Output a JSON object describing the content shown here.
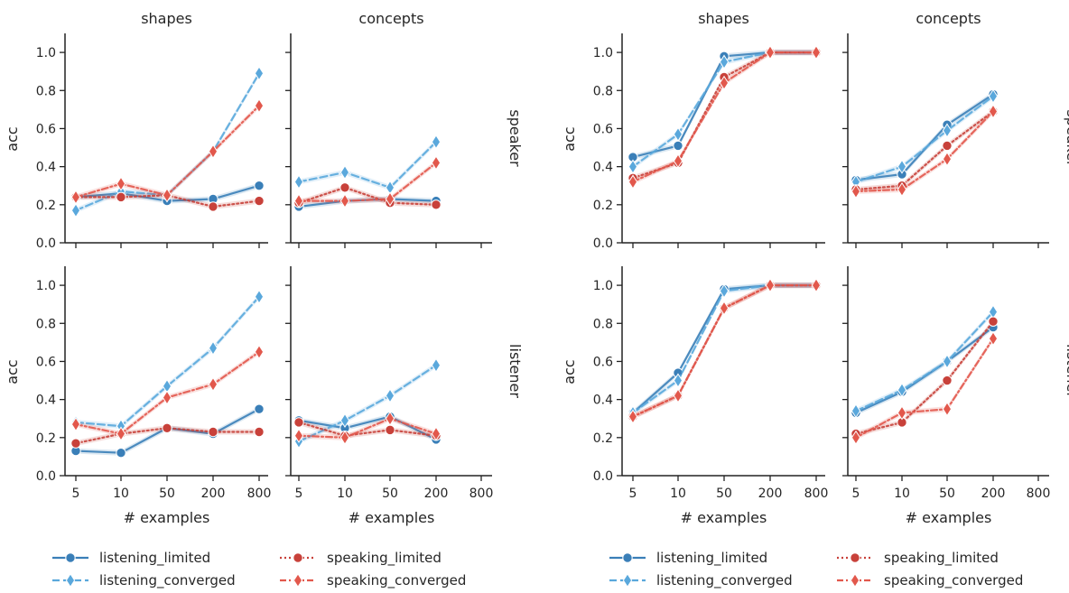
{
  "chart_data": [
    {
      "type": "line",
      "xlabel": "# examples",
      "ylabel": "acc",
      "ylim": [
        0,
        1.1
      ],
      "yticks": [
        0.0,
        0.2,
        0.4,
        0.6,
        0.8,
        1.0
      ],
      "ytick_labels": [
        "0.0",
        "0.2",
        "0.4",
        "0.6",
        "0.8",
        "1.0"
      ],
      "x_categories": [
        "5",
        "10",
        "50",
        "200",
        "800"
      ],
      "col_titles": [
        "shapes",
        "concepts"
      ],
      "row_titles": [
        "speaker",
        "listener"
      ],
      "legend": {
        "placement": "bottom",
        "entries": [
          "listening_limited",
          "listening_converged",
          "speaking_limited",
          "speaking_converged"
        ]
      },
      "panels": [
        {
          "col": "shapes",
          "row": "speaker",
          "series": [
            {
              "name": "listening_limited",
              "x": [
                "5",
                "10",
                "50",
                "200",
                "800"
              ],
              "values": [
                0.24,
                0.26,
                0.22,
                0.23,
                0.3
              ]
            },
            {
              "name": "listening_converged",
              "x": [
                "5",
                "10",
                "50",
                "200",
                "800"
              ],
              "values": [
                0.17,
                0.27,
                0.25,
                0.48,
                0.89
              ]
            },
            {
              "name": "speaking_limited",
              "x": [
                "5",
                "10",
                "50",
                "200",
                "800"
              ],
              "values": [
                0.24,
                0.24,
                0.25,
                0.19,
                0.22
              ]
            },
            {
              "name": "speaking_converged",
              "x": [
                "5",
                "10",
                "50",
                "200",
                "800"
              ],
              "values": [
                0.24,
                0.31,
                0.25,
                0.48,
                0.72
              ]
            }
          ]
        },
        {
          "col": "concepts",
          "row": "speaker",
          "series": [
            {
              "name": "listening_limited",
              "x": [
                "5",
                "10",
                "50",
                "200"
              ],
              "values": [
                0.19,
                0.22,
                0.23,
                0.22
              ]
            },
            {
              "name": "listening_converged",
              "x": [
                "5",
                "10",
                "50",
                "200"
              ],
              "values": [
                0.32,
                0.37,
                0.29,
                0.53
              ]
            },
            {
              "name": "speaking_limited",
              "x": [
                "5",
                "10",
                "50",
                "200"
              ],
              "values": [
                0.21,
                0.29,
                0.21,
                0.2
              ]
            },
            {
              "name": "speaking_converged",
              "x": [
                "5",
                "10",
                "50",
                "200"
              ],
              "values": [
                0.22,
                0.22,
                0.23,
                0.42
              ]
            }
          ]
        },
        {
          "col": "shapes",
          "row": "listener",
          "series": [
            {
              "name": "listening_limited",
              "x": [
                "5",
                "10",
                "50",
                "200",
                "800"
              ],
              "values": [
                0.13,
                0.12,
                0.25,
                0.22,
                0.35
              ]
            },
            {
              "name": "listening_converged",
              "x": [
                "5",
                "10",
                "50",
                "200",
                "800"
              ],
              "values": [
                0.28,
                0.26,
                0.47,
                0.67,
                0.94
              ]
            },
            {
              "name": "speaking_limited",
              "x": [
                "5",
                "10",
                "50",
                "200",
                "800"
              ],
              "values": [
                0.17,
                0.22,
                0.25,
                0.23,
                0.23
              ]
            },
            {
              "name": "speaking_converged",
              "x": [
                "5",
                "10",
                "50",
                "200",
                "800"
              ],
              "values": [
                0.27,
                0.22,
                0.41,
                0.48,
                0.65
              ]
            }
          ]
        },
        {
          "col": "concepts",
          "row": "listener",
          "series": [
            {
              "name": "listening_limited",
              "x": [
                "5",
                "10",
                "50",
                "200"
              ],
              "values": [
                0.29,
                0.25,
                0.31,
                0.19
              ]
            },
            {
              "name": "listening_converged",
              "x": [
                "5",
                "10",
                "50",
                "200"
              ],
              "values": [
                0.18,
                0.29,
                0.42,
                0.58
              ]
            },
            {
              "name": "speaking_limited",
              "x": [
                "5",
                "10",
                "50",
                "200"
              ],
              "values": [
                0.28,
                0.21,
                0.24,
                0.21
              ]
            },
            {
              "name": "speaking_converged",
              "x": [
                "5",
                "10",
                "50",
                "200"
              ],
              "values": [
                0.21,
                0.2,
                0.3,
                0.22
              ]
            }
          ]
        }
      ]
    },
    {
      "type": "line",
      "xlabel": "# examples",
      "ylabel": "acc",
      "ylim": [
        0,
        1.1
      ],
      "yticks": [
        0.0,
        0.2,
        0.4,
        0.6,
        0.8,
        1.0
      ],
      "ytick_labels": [
        "0.0",
        "0.2",
        "0.4",
        "0.6",
        "0.8",
        "1.0"
      ],
      "x_categories": [
        "5",
        "10",
        "50",
        "200",
        "800"
      ],
      "col_titles": [
        "shapes",
        "concepts"
      ],
      "row_titles": [
        "speaker",
        "listener"
      ],
      "legend": {
        "placement": "bottom",
        "entries": [
          "listening_limited",
          "listening_converged",
          "speaking_limited",
          "speaking_converged"
        ]
      },
      "panels": [
        {
          "col": "shapes",
          "row": "speaker",
          "series": [
            {
              "name": "listening_limited",
              "x": [
                "5",
                "10",
                "50",
                "200",
                "800"
              ],
              "values": [
                0.45,
                0.51,
                0.98,
                1.0,
                1.0
              ]
            },
            {
              "name": "listening_converged",
              "x": [
                "5",
                "10",
                "50",
                "200",
                "800"
              ],
              "values": [
                0.4,
                0.57,
                0.95,
                1.0,
                1.0
              ]
            },
            {
              "name": "speaking_limited",
              "x": [
                "5",
                "10",
                "50",
                "200",
                "800"
              ],
              "values": [
                0.34,
                0.42,
                0.87,
                1.0,
                1.0
              ]
            },
            {
              "name": "speaking_converged",
              "x": [
                "5",
                "10",
                "50",
                "200",
                "800"
              ],
              "values": [
                0.32,
                0.43,
                0.84,
                1.0,
                1.0
              ]
            }
          ]
        },
        {
          "col": "concepts",
          "row": "speaker",
          "series": [
            {
              "name": "listening_limited",
              "x": [
                "5",
                "10",
                "50",
                "200"
              ],
              "values": [
                0.33,
                0.36,
                0.62,
                0.78
              ]
            },
            {
              "name": "listening_converged",
              "x": [
                "5",
                "10",
                "50",
                "200"
              ],
              "values": [
                0.32,
                0.4,
                0.59,
                0.77
              ]
            },
            {
              "name": "speaking_limited",
              "x": [
                "5",
                "10",
                "50",
                "200"
              ],
              "values": [
                0.28,
                0.3,
                0.51,
                0.69
              ]
            },
            {
              "name": "speaking_converged",
              "x": [
                "5",
                "10",
                "50",
                "200"
              ],
              "values": [
                0.27,
                0.28,
                0.44,
                0.69
              ]
            }
          ]
        },
        {
          "col": "shapes",
          "row": "listener",
          "series": [
            {
              "name": "listening_limited",
              "x": [
                "5",
                "10",
                "50",
                "200",
                "800"
              ],
              "values": [
                0.33,
                0.54,
                0.98,
                1.0,
                1.0
              ]
            },
            {
              "name": "listening_converged",
              "x": [
                "5",
                "10",
                "50",
                "200",
                "800"
              ],
              "values": [
                0.33,
                0.5,
                0.97,
                1.0,
                1.0
              ]
            },
            {
              "name": "speaking_limited",
              "x": [
                "5",
                "10",
                "50",
                "200",
                "800"
              ],
              "values": [
                0.31,
                0.42,
                0.88,
                1.0,
                1.0
              ]
            },
            {
              "name": "speaking_converged",
              "x": [
                "5",
                "10",
                "50",
                "200",
                "800"
              ],
              "values": [
                0.31,
                0.42,
                0.88,
                1.0,
                1.0
              ]
            }
          ]
        },
        {
          "col": "concepts",
          "row": "listener",
          "series": [
            {
              "name": "listening_limited",
              "x": [
                "5",
                "10",
                "50",
                "200"
              ],
              "values": [
                0.33,
                0.44,
                0.6,
                0.78
              ]
            },
            {
              "name": "listening_converged",
              "x": [
                "5",
                "10",
                "50",
                "200"
              ],
              "values": [
                0.34,
                0.45,
                0.6,
                0.86
              ]
            },
            {
              "name": "speaking_limited",
              "x": [
                "5",
                "10",
                "50",
                "200"
              ],
              "values": [
                0.22,
                0.28,
                0.5,
                0.81
              ]
            },
            {
              "name": "speaking_converged",
              "x": [
                "5",
                "10",
                "50",
                "200"
              ],
              "values": [
                0.2,
                0.33,
                0.35,
                0.72
              ]
            }
          ]
        }
      ]
    }
  ],
  "series_styles": {
    "listening_limited": {
      "color": "#3a7fb8",
      "dash": "solid",
      "marker": "circle"
    },
    "listening_converged": {
      "color": "#5aa8dc",
      "dash": "dashed",
      "marker": "diamond"
    },
    "speaking_limited": {
      "color": "#c8413a",
      "dash": "dotted",
      "marker": "circle"
    },
    "speaking_converged": {
      "color": "#e2584c",
      "dash": "dashdot",
      "marker": "diamond"
    }
  }
}
